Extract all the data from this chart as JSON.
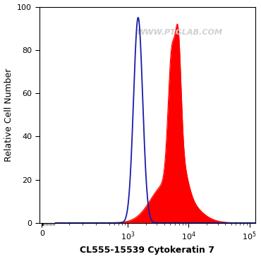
{
  "xlabel": "CL555-15539 Cytokeratin 7",
  "ylabel": "Relative Cell Number",
  "ylim": [
    0,
    100
  ],
  "watermark": "WWW.PTGLAB.COM",
  "watermark_color": "#d0d0d0",
  "background_color": "#ffffff",
  "plot_bg_color": "#ffffff",
  "blue_color": "#1a1aaa",
  "red_color": "#ff0000",
  "red_fill_alpha": 1.0,
  "yticks": [
    0,
    20,
    40,
    60,
    80,
    100
  ],
  "axis_fontsize": 9,
  "tick_fontsize": 8,
  "xlabel_fontsize": 9
}
